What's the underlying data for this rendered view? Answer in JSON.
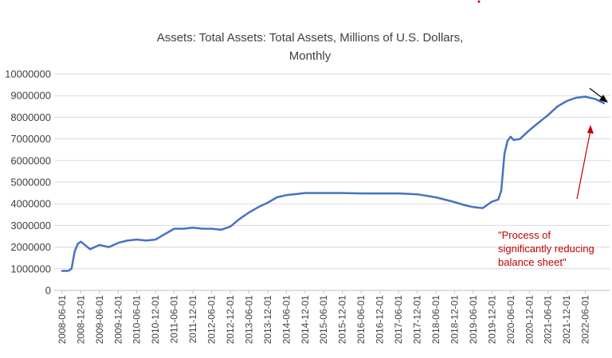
{
  "chart_data": {
    "type": "line",
    "title": [
      "Assets: Total Assets: Total Assets, Millions of U.S. Dollars,",
      "Monthly"
    ],
    "xlabel": "",
    "ylabel": "",
    "ylim": [
      0,
      10000000
    ],
    "y_ticks": [
      "0",
      "1000000",
      "2000000",
      "3000000",
      "4000000",
      "5000000",
      "6000000",
      "7000000",
      "8000000",
      "9000000",
      "10000000"
    ],
    "x_ticks": [
      "2008-06-01",
      "2008-12-01",
      "2009-06-01",
      "2009-12-01",
      "2010-06-01",
      "2010-12-01",
      "2011-06-01",
      "2011-12-01",
      "2012-06-01",
      "2012-12-01",
      "2013-06-01",
      "2013-12-01",
      "2014-06-01",
      "2014-12-01",
      "2015-06-01",
      "2015-12-01",
      "2016-06-01",
      "2016-12-01",
      "2017-06-01",
      "2017-12-01",
      "2018-06-01",
      "2018-12-01",
      "2019-06-01",
      "2019-12-01",
      "2020-06-01",
      "2020-12-01",
      "2021-06-01",
      "2021-12-01",
      "2022-06-01"
    ],
    "grid": true,
    "line_color": "#4472c4",
    "series": [
      {
        "x": [
          "2008-06-01",
          "2008-08-01",
          "2008-09-01",
          "2008-10-01",
          "2008-11-01",
          "2008-12-01",
          "2009-03-01",
          "2009-06-01",
          "2009-09-01",
          "2009-12-01",
          "2010-03-01",
          "2010-06-01",
          "2010-09-01",
          "2010-12-01",
          "2011-03-01",
          "2011-06-01",
          "2011-09-01",
          "2011-12-01",
          "2012-03-01",
          "2012-06-01",
          "2012-09-01",
          "2012-12-01",
          "2013-03-01",
          "2013-06-01",
          "2013-09-01",
          "2013-12-01",
          "2014-03-01",
          "2014-06-01",
          "2014-09-01",
          "2014-12-01",
          "2015-06-01",
          "2015-12-01",
          "2016-06-01",
          "2016-12-01",
          "2017-06-01",
          "2017-12-01",
          "2018-06-01",
          "2018-12-01",
          "2019-03-01",
          "2019-06-01",
          "2019-09-01",
          "2019-12-01",
          "2020-02-01",
          "2020-03-01",
          "2020-04-01",
          "2020-05-01",
          "2020-06-01",
          "2020-07-01",
          "2020-09-01",
          "2020-12-01",
          "2021-03-01",
          "2021-06-01",
          "2021-09-01",
          "2021-12-01",
          "2022-03-01",
          "2022-06-01",
          "2022-09-01",
          "2022-12-01"
        ],
        "values": [
          900000,
          900000,
          1000000,
          1800000,
          2150000,
          2250000,
          1900000,
          2100000,
          2000000,
          2200000,
          2300000,
          2350000,
          2300000,
          2350000,
          2600000,
          2850000,
          2850000,
          2900000,
          2850000,
          2850000,
          2800000,
          2950000,
          3300000,
          3600000,
          3850000,
          4050000,
          4300000,
          4400000,
          4450000,
          4500000,
          4500000,
          4500000,
          4480000,
          4480000,
          4480000,
          4440000,
          4300000,
          4080000,
          3950000,
          3850000,
          3800000,
          4100000,
          4200000,
          4600000,
          6300000,
          6900000,
          7100000,
          6950000,
          7000000,
          7400000,
          7750000,
          8100000,
          8500000,
          8750000,
          8900000,
          8950000,
          8850000,
          8650000
        ]
      }
    ],
    "annotation": [
      "\"Process of",
      "significantly reducing",
      "balance sheet\""
    ],
    "annotation_color": "#c00000",
    "arrow_colors": [
      "#c00000",
      "#000000"
    ]
  }
}
